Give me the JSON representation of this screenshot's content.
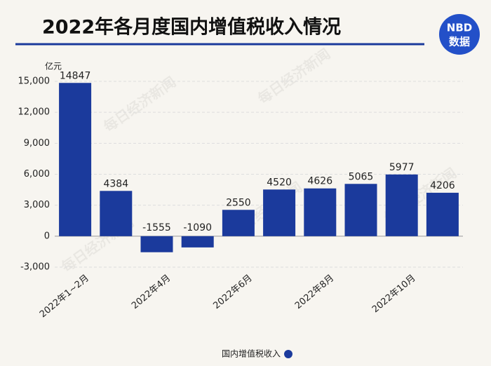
{
  "title": "2022年各月度国内增值税收入情况",
  "logo": {
    "top": "NBD",
    "bottom": "数据"
  },
  "watermark": "每日经济新闻",
  "chart_data": {
    "type": "bar",
    "y_unit": "亿元",
    "categories": [
      "2022年1~2月",
      null,
      "2022年4月",
      null,
      "2022年6月",
      null,
      "2022年8月",
      null,
      "2022年10月",
      null
    ],
    "series": [
      {
        "name": "国内增值税收入",
        "color": "#1b3a9c",
        "values": [
          14847,
          4384,
          -1555,
          -1090,
          2550,
          4520,
          4626,
          5065,
          5977,
          4206
        ]
      }
    ],
    "ylim": [
      -3000,
      15000
    ],
    "yticks": [
      {
        "value": -3000,
        "label": "-3,000"
      },
      0,
      {
        "value": 3000,
        "label": "3,000"
      },
      {
        "value": 6000,
        "label": "6,000"
      },
      {
        "value": 9000,
        "label": "9,000"
      },
      {
        "value": 12000,
        "label": "12,000"
      },
      {
        "value": 15000,
        "label": "15,000"
      }
    ],
    "grid": true,
    "legend": "bottom"
  }
}
